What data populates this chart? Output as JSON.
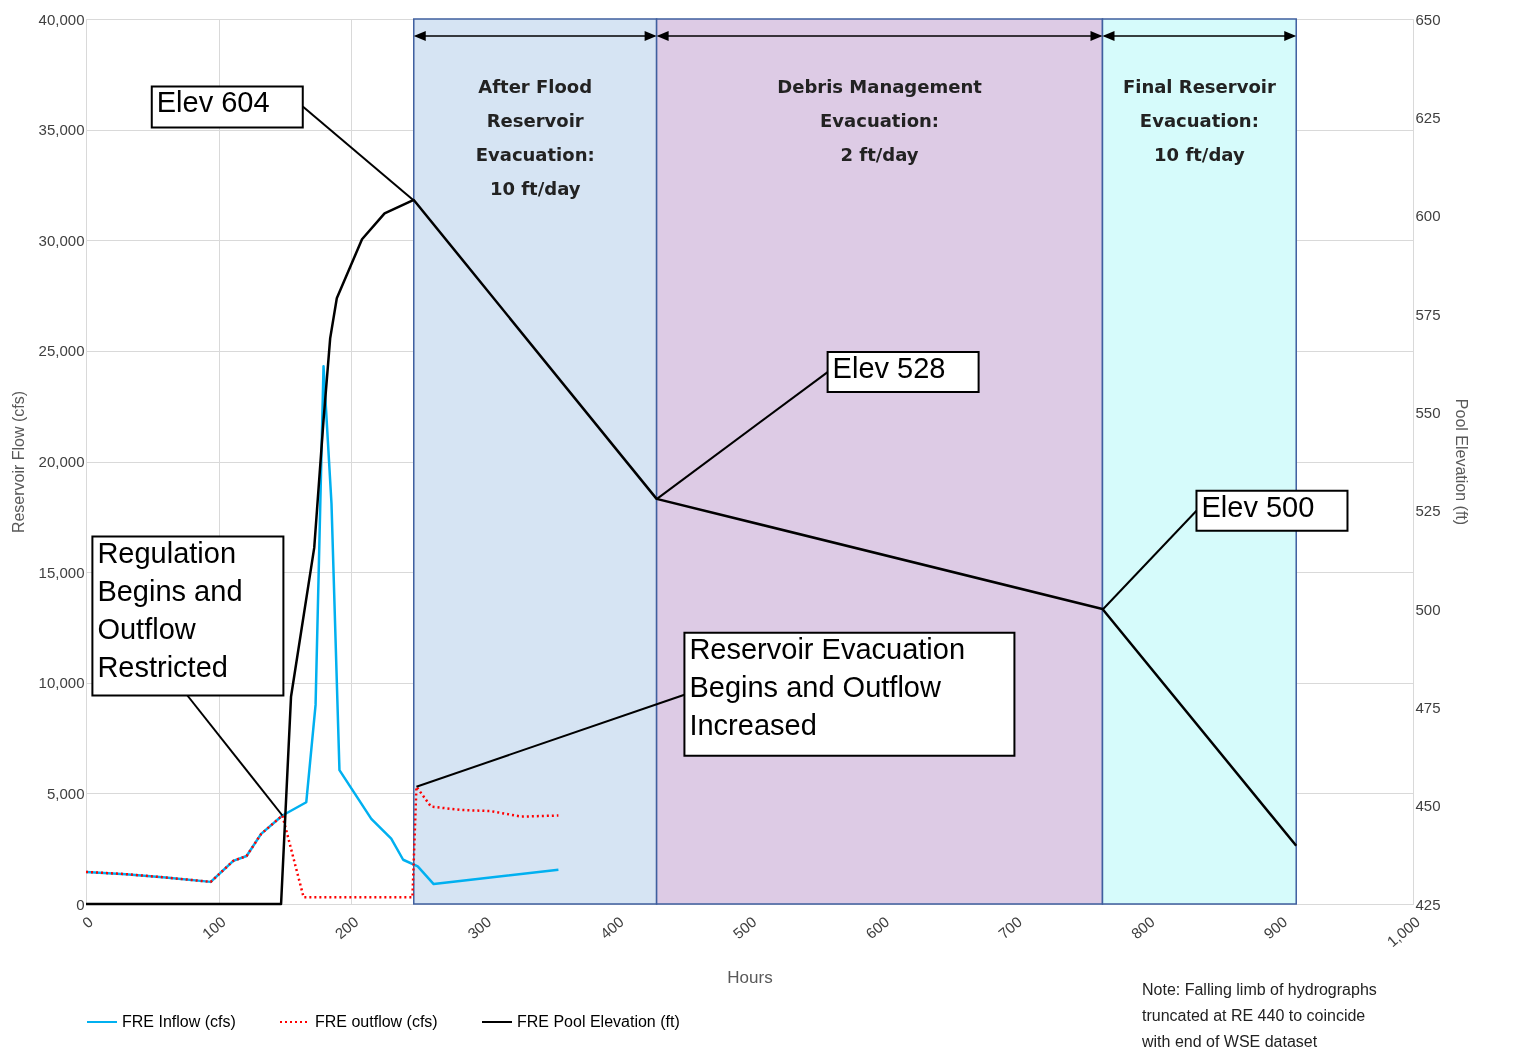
{
  "chart_data": {
    "type": "line",
    "xlabel": "Hours",
    "ylabel": "Reservoir Flow (cfs)",
    "y2label": "Pool Elevation (ft)",
    "xlim": [
      0,
      1000
    ],
    "xticks": [
      0,
      100,
      200,
      300,
      400,
      500,
      600,
      700,
      800,
      900,
      {
        "value": 1000,
        "label": "1,000"
      }
    ],
    "ylim": [
      0,
      40000
    ],
    "yticks": [
      0,
      {
        "value": 5000,
        "label": "5,000"
      },
      {
        "value": 10000,
        "label": "10,000"
      },
      {
        "value": 15000,
        "label": "15,000"
      },
      {
        "value": 20000,
        "label": "20,000"
      },
      {
        "value": 25000,
        "label": "25,000"
      },
      {
        "value": 30000,
        "label": "30,000"
      },
      {
        "value": 35000,
        "label": "35,000"
      },
      {
        "value": 40000,
        "label": "40,000"
      }
    ],
    "y2lim": [
      425,
      650
    ],
    "y2ticks": [
      425,
      450,
      475,
      500,
      525,
      550,
      575,
      600,
      625,
      650
    ],
    "grid": true,
    "legend": "bottom",
    "marker": "none",
    "series": [
      {
        "name": "FRE Inflow (cfs)",
        "color": "#00b0f0",
        "line_style": "solid",
        "x": [
          0,
          30,
          60,
          94,
          111,
          121,
          132,
          148,
          166,
          173,
          179,
          185,
          191,
          215,
          230,
          239,
          250,
          262,
          290,
          356
        ],
        "values": [
          1450,
          1350,
          1200,
          1000,
          1950,
          2170,
          3170,
          4000,
          4600,
          9000,
          24300,
          18100,
          6050,
          3850,
          2950,
          2000,
          1700,
          900,
          1100,
          1550
        ]
      },
      {
        "name": "FRE outflow (cfs)",
        "color": "#ff0000",
        "line_style": "dotted",
        "x": [
          0,
          30,
          60,
          94,
          111,
          121,
          132,
          148,
          164,
          246,
          249,
          260,
          283,
          305,
          328,
          356
        ],
        "values": [
          1450,
          1350,
          1200,
          1000,
          1950,
          2170,
          3170,
          4000,
          300,
          300,
          5300,
          4400,
          4250,
          4200,
          3950,
          4000
        ]
      },
      {
        "name": "FRE Pool Elevation (ft)",
        "color": "#000000",
        "line_style": "solid",
        "axis": "y2",
        "x": [
          0,
          147,
          154.5,
          172,
          179,
          184,
          189,
          208,
          225,
          247,
          430,
          766,
          912
        ],
        "values": [
          425,
          425,
          477.7,
          515.6,
          548,
          568.8,
          579,
          594,
          600.6,
          604,
          528,
          500,
          439.8
        ]
      }
    ],
    "bands": [
      {
        "axis": "x",
        "from": 247,
        "to": 430,
        "label": "After Flood Reservoir Evacuation: 10 ft/day",
        "color": "#d6e4f3"
      },
      {
        "axis": "x",
        "from": 430,
        "to": 766,
        "label": "Debris Management Evacuation: 2 ft/day",
        "color": "#ddcbe5"
      },
      {
        "axis": "x",
        "from": 766,
        "to": 912,
        "label": "Final Reservoir Evacuation: 10 ft/day",
        "color": "#d6fbfb"
      }
    ],
    "annotations": [
      {
        "text": "Elev 604",
        "x": 247,
        "y": 31800
      },
      {
        "text": "Elev 528",
        "x": 430,
        "y": 18300
      },
      {
        "text": "Elev 500",
        "x": 766,
        "y": 13300
      },
      {
        "text": "Regulation Begins and Outflow Restricted",
        "x": 148,
        "y": 4000
      },
      {
        "text": "Reservoir Evacuation Begins and Outflow Increased",
        "x": 249,
        "y": 5300
      },
      "Note: Falling limb of hydrographs truncated at RE 440 to coincide with end of WSE dataset"
    ]
  }
}
